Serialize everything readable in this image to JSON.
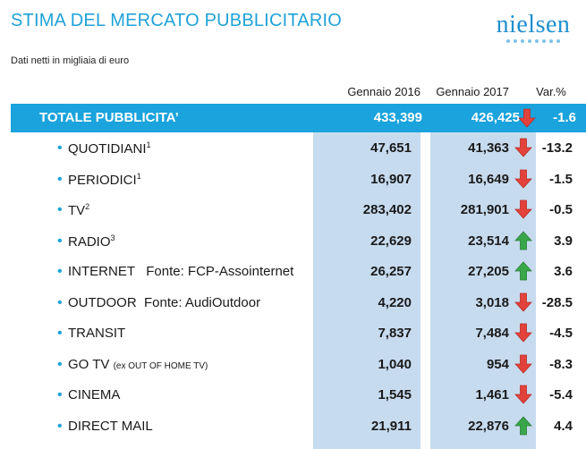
{
  "header": {
    "title": "STIMA DEL MERCATO PUBBLICITARIO",
    "logo": "nielsen",
    "subtitle": "Dati netti in migliaia di euro"
  },
  "columns": [
    "Gennaio 2016",
    "Gennaio 2017",
    "Var.%"
  ],
  "colors": {
    "accent": "#1aa3dc",
    "column_shade": "#c7dbef",
    "down": "#e3423b",
    "up": "#3aa64a"
  },
  "total": {
    "label": "TOTALE PUBBLICITA’",
    "jan2016": "433,399",
    "jan2017": "426,425",
    "var": "-1.6",
    "trend": "down"
  },
  "rows": [
    {
      "label": "QUOTIDIANI",
      "sup": "1",
      "jan2016": "47,651",
      "jan2017": "41,363",
      "var": "-13.2",
      "trend": "down"
    },
    {
      "label": "PERIODICI",
      "sup": "1",
      "jan2016": "16,907",
      "jan2017": "16,649",
      "var": "-1.5",
      "trend": "down"
    },
    {
      "label": "TV",
      "sup": "2",
      "jan2016": "283,402",
      "jan2017": "281,901",
      "var": "-0.5",
      "trend": "down"
    },
    {
      "label": "RADIO",
      "sup": "3",
      "jan2016": "22,629",
      "jan2017": "23,514",
      "var": "3.9",
      "trend": "up"
    },
    {
      "label": "INTERNET   Fonte: FCP-Assointernet",
      "jan2016": "26,257",
      "jan2017": "27,205",
      "var": "3.6",
      "trend": "up"
    },
    {
      "label": "OUTDOOR  Fonte: AudiOutdoor",
      "jan2016": "4,220",
      "jan2017": "3,018",
      "var": "-28.5",
      "trend": "down"
    },
    {
      "label": "TRANSIT",
      "jan2016": "7,837",
      "jan2017": "7,484",
      "var": "-4.5",
      "trend": "down"
    },
    {
      "label": "GO TV",
      "note": "(ex OUT OF HOME TV)",
      "jan2016": "1,040",
      "jan2017": "954",
      "var": "-8.3",
      "trend": "down"
    },
    {
      "label": "CINEMA",
      "jan2016": "1,545",
      "jan2017": "1,461",
      "var": "-5.4",
      "trend": "down"
    },
    {
      "label": "DIRECT MAIL",
      "jan2016": "21,911",
      "jan2017": "22,876",
      "var": "4.4",
      "trend": "up"
    }
  ]
}
